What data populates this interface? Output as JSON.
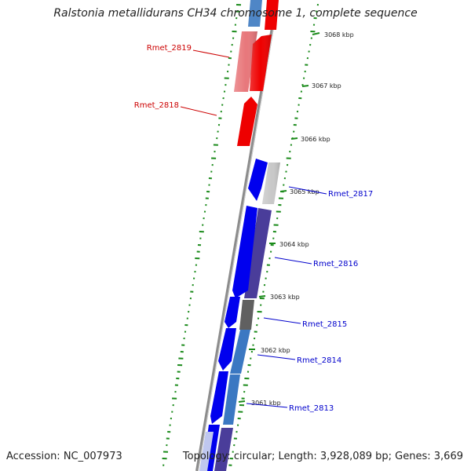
{
  "title": "Ralstonia metallidurans CH34 chromosome 1, complete sequence",
  "accession": "Accession: NC_007973",
  "summary": "Topology: circular; Length: 3,928,089 bp; Genes: 3,669",
  "colors": {
    "backbone": "#888888",
    "gc_ticks": "#1a8a1a",
    "red_label": "#cc0000",
    "blue_label": "#0000cc",
    "forward_strong": "#0000ee",
    "reverse_red": "#ee0000"
  },
  "ticks": [
    "3068 kbp",
    "3067 kbp",
    "3066 kbp",
    "3065 kbp",
    "3064 kbp",
    "3063 kbp",
    "3062 kbp",
    "3061 kbp"
  ],
  "gene_labels": [
    {
      "text": "Rmet_2819",
      "color": "#cc0000"
    },
    {
      "text": "Rmet_2818",
      "color": "#cc0000"
    },
    {
      "text": "Rmet_2817",
      "color": "#0000cc"
    },
    {
      "text": "Rmet_2816",
      "color": "#0000cc"
    },
    {
      "text": "Rmet_2815",
      "color": "#0000cc"
    },
    {
      "text": "Rmet_2814",
      "color": "#0000cc"
    },
    {
      "text": "Rmet_2813",
      "color": "#0000cc"
    }
  ]
}
